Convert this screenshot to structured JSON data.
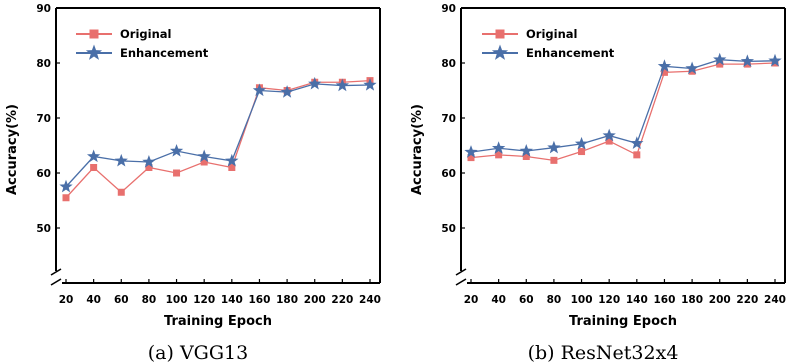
{
  "chart_data": [
    {
      "type": "line",
      "caption": "(a) VGG13",
      "xlabel": "Training Epoch",
      "ylabel": "Accuracy(%)",
      "x": [
        20,
        40,
        60,
        80,
        100,
        120,
        140,
        160,
        180,
        200,
        220,
        240
      ],
      "ylim": [
        40,
        90
      ],
      "yticks": [
        50,
        60,
        70,
        80,
        90
      ],
      "axis_break": true,
      "legend_position": "top-left",
      "series": [
        {
          "name": "Original",
          "color": "#e8706e",
          "marker": "square",
          "values": [
            55.5,
            61.0,
            56.5,
            61.0,
            60.0,
            62.0,
            61.0,
            75.5,
            75.0,
            76.5,
            76.5,
            76.8
          ]
        },
        {
          "name": "Enhancement",
          "color": "#4a6fa8",
          "marker": "star",
          "values": [
            57.5,
            63.0,
            62.2,
            62.0,
            64.0,
            63.0,
            62.2,
            75.0,
            74.7,
            76.2,
            75.9,
            76.0
          ]
        }
      ]
    },
    {
      "type": "line",
      "caption": "(b) ResNet32x4",
      "xlabel": "Training Epoch",
      "ylabel": "Accuracy(%)",
      "x": [
        20,
        40,
        60,
        80,
        100,
        120,
        140,
        160,
        180,
        200,
        220,
        240
      ],
      "ylim": [
        40,
        90
      ],
      "yticks": [
        50,
        60,
        70,
        80,
        90
      ],
      "axis_break": true,
      "legend_position": "top-left",
      "series": [
        {
          "name": "Original",
          "color": "#e8706e",
          "marker": "square",
          "values": [
            62.8,
            63.3,
            63.0,
            62.3,
            63.9,
            65.8,
            63.3,
            78.3,
            78.5,
            79.8,
            79.8,
            80.0
          ]
        },
        {
          "name": "Enhancement",
          "color": "#4a6fa8",
          "marker": "star",
          "values": [
            63.8,
            64.5,
            64.0,
            64.6,
            65.3,
            66.8,
            65.4,
            79.4,
            79.0,
            80.6,
            80.3,
            80.4
          ]
        }
      ]
    }
  ]
}
